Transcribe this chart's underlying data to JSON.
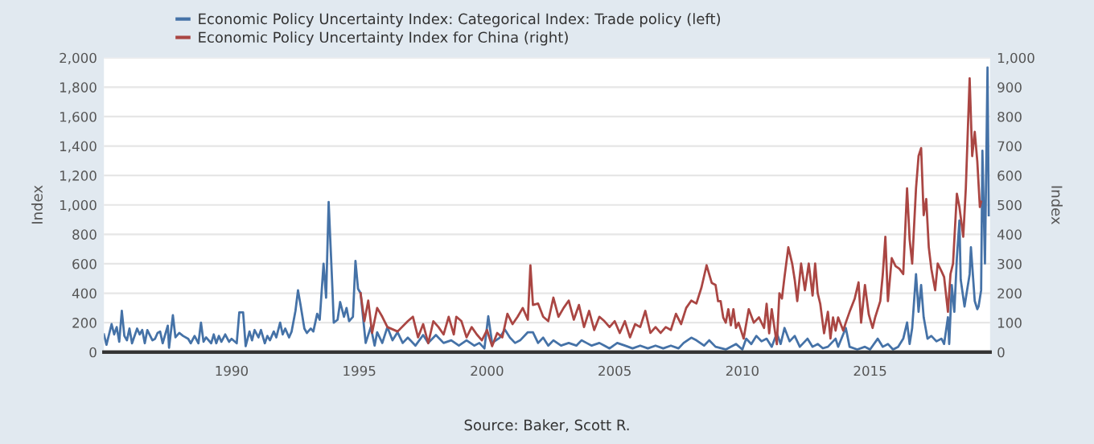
{
  "chart_data": {
    "type": "line",
    "ylabel": "Index",
    "y2label": "Index",
    "xlim": [
      1985,
      2019.7
    ],
    "xticks": [
      1990,
      1995,
      2000,
      2005,
      2010,
      2015
    ],
    "ylim": [
      0,
      2000
    ],
    "yticks": [
      0,
      200,
      400,
      600,
      800,
      {
        "value": 1000,
        "label": "1,000"
      },
      {
        "value": 1200,
        "label": "1,200"
      },
      {
        "value": 1400,
        "label": "1,400"
      },
      {
        "value": 1600,
        "label": "1,600"
      },
      {
        "value": 1800,
        "label": "1,800"
      },
      {
        "value": 2000,
        "label": "2,000"
      }
    ],
    "y2lim": [
      0,
      1000
    ],
    "y2ticks": [
      0,
      100,
      200,
      300,
      400,
      500,
      600,
      700,
      800,
      900,
      {
        "value": 1000,
        "label": "1,000"
      }
    ],
    "grid": "y",
    "legend": "top left",
    "marker": "none",
    "line_style": "solid",
    "annotations": [
      "Source: Baker, Scott R."
    ],
    "series": [
      {
        "name": "Economic Policy Uncertainty Index: Categorical Index: Trade policy (left)",
        "color": "#4572a7",
        "x": [
          1985.0,
          1985.1,
          1985.3,
          1985.4,
          1985.5,
          1985.6,
          1985.7,
          1985.8,
          1985.9,
          1986.0,
          1986.1,
          1986.3,
          1986.4,
          1986.5,
          1986.6,
          1986.7,
          1986.9,
          1987.0,
          1987.1,
          1987.2,
          1987.3,
          1987.5,
          1987.55,
          1987.7,
          1987.8,
          1987.95,
          1988.1,
          1988.3,
          1988.4,
          1988.55,
          1988.7,
          1988.8,
          1988.9,
          1989.0,
          1989.2,
          1989.3,
          1989.4,
          1989.5,
          1989.6,
          1989.75,
          1989.9,
          1990.0,
          1990.2,
          1990.3,
          1990.45,
          1990.55,
          1990.7,
          1990.8,
          1990.9,
          1991.05,
          1991.15,
          1991.3,
          1991.4,
          1991.5,
          1991.65,
          1991.75,
          1991.9,
          1992.0,
          1992.1,
          1992.25,
          1992.35,
          1992.5,
          1992.6,
          1992.7,
          1992.85,
          1992.95,
          1993.1,
          1993.2,
          1993.35,
          1993.45,
          1993.6,
          1993.7,
          1993.8,
          1993.95,
          1994.0,
          1994.15,
          1994.25,
          1994.4,
          1994.5,
          1994.6,
          1994.75,
          1994.85,
          1994.95,
          1995.05,
          1995.25,
          1995.45,
          1995.6,
          1995.7,
          1995.9,
          1996.1,
          1996.3,
          1996.5,
          1996.7,
          1996.9,
          1997.2,
          1997.5,
          1997.7,
          1998.0,
          1998.3,
          1998.6,
          1998.9,
          1999.2,
          1999.5,
          1999.7,
          1999.9,
          2000.05,
          2000.2,
          2000.5,
          2000.7,
          2000.9,
          2001.1,
          2001.3,
          2001.6,
          2001.8,
          2002.0,
          2002.2,
          2002.4,
          2002.6,
          2002.9,
          2003.2,
          2003.5,
          2003.7,
          2003.9,
          2004.1,
          2004.4,
          2004.6,
          2004.8,
          2005.1,
          2005.4,
          2005.7,
          2006.0,
          2006.3,
          2006.6,
          2006.9,
          2007.2,
          2007.5,
          2007.7,
          2008.0,
          2008.2,
          2008.5,
          2008.7,
          2008.95,
          2009.35,
          2009.75,
          2010.0,
          2010.15,
          2010.35,
          2010.55,
          2010.75,
          2010.95,
          2011.15,
          2011.35,
          2011.5,
          2011.65,
          2011.85,
          2012.05,
          2012.25,
          2012.55,
          2012.75,
          2012.95,
          2013.15,
          2013.35,
          2013.65,
          2013.75,
          2014.05,
          2014.2,
          2014.5,
          2014.8,
          2015.0,
          2015.3,
          2015.5,
          2015.7,
          2015.9,
          2016.1,
          2016.3,
          2016.45,
          2016.55,
          2016.65,
          2016.8,
          2016.9,
          2017.0,
          2017.1,
          2017.25,
          2017.4,
          2017.6,
          2017.8,
          2017.9,
          2018.05,
          2018.1,
          2018.2,
          2018.3,
          2018.4,
          2018.5,
          2018.55,
          2018.7,
          2018.8,
          2018.9,
          2018.95,
          2019.1,
          2019.2,
          2019.25,
          2019.35,
          2019.4,
          2019.5,
          2019.6,
          2019.65
        ],
        "values": [
          120,
          50,
          190,
          120,
          170,
          70,
          280,
          110,
          80,
          160,
          60,
          160,
          120,
          150,
          60,
          150,
          80,
          90,
          130,
          140,
          60,
          180,
          30,
          250,
          100,
          130,
          110,
          90,
          60,
          110,
          60,
          200,
          70,
          100,
          60,
          120,
          60,
          110,
          70,
          120,
          70,
          90,
          60,
          270,
          270,
          40,
          140,
          80,
          150,
          100,
          150,
          60,
          110,
          80,
          140,
          100,
          200,
          120,
          160,
          100,
          140,
          280,
          420,
          320,
          160,
          130,
          160,
          140,
          260,
          220,
          600,
          370,
          1020,
          420,
          200,
          220,
          340,
          240,
          300,
          210,
          240,
          620,
          430,
          400,
          62,
          170,
          44,
          135,
          62,
          170,
          80,
          135,
          62,
          98,
          44,
          116,
          62,
          116,
          62,
          80,
          44,
          80,
          44,
          62,
          25,
          244,
          62,
          98,
          153,
          98,
          62,
          80,
          135,
          135,
          62,
          98,
          44,
          80,
          44,
          62,
          44,
          80,
          62,
          44,
          62,
          44,
          25,
          62,
          44,
          25,
          44,
          25,
          44,
          25,
          44,
          25,
          62,
          98,
          80,
          44,
          80,
          36,
          18,
          55,
          18,
          91,
          55,
          110,
          73,
          91,
          36,
          128,
          55,
          164,
          73,
          110,
          36,
          91,
          36,
          55,
          26,
          36,
          91,
          36,
          164,
          36,
          18,
          36,
          18,
          91,
          36,
          55,
          18,
          36,
          91,
          201,
          55,
          164,
          529,
          274,
          456,
          237,
          91,
          110,
          73,
          91,
          55,
          237,
          55,
          456,
          274,
          639,
          894,
          493,
          310,
          420,
          529,
          712,
          347,
          292,
          310,
          420,
          1368,
          602,
          1934,
          930
        ]
      },
      {
        "name": "Economic Policy Uncertainty Index for China (right)",
        "color": "#aa4643",
        "axis": "y2",
        "x": [
          1995.05,
          1995.2,
          1995.35,
          1995.5,
          1995.7,
          1995.9,
          1996.1,
          1996.5,
          1996.9,
          1997.1,
          1997.3,
          1997.5,
          1997.7,
          1997.9,
          1998.1,
          1998.3,
          1998.5,
          1998.7,
          1998.8,
          1999.0,
          1999.2,
          1999.4,
          1999.6,
          1999.8,
          2000.0,
          2000.2,
          2000.4,
          2000.6,
          2000.8,
          2001.0,
          2001.2,
          2001.4,
          2001.6,
          2001.7,
          2001.8,
          2002.0,
          2002.2,
          2002.4,
          2002.6,
          2002.8,
          2003.0,
          2003.2,
          2003.4,
          2003.6,
          2003.8,
          2004.0,
          2004.2,
          2004.4,
          2004.6,
          2004.8,
          2005.0,
          2005.2,
          2005.4,
          2005.6,
          2005.8,
          2006.0,
          2006.2,
          2006.4,
          2006.6,
          2006.8,
          2007.0,
          2007.2,
          2007.4,
          2007.6,
          2007.8,
          2008.0,
          2008.2,
          2008.4,
          2008.6,
          2008.8,
          2008.95,
          2009.05,
          2009.15,
          2009.25,
          2009.35,
          2009.45,
          2009.55,
          2009.65,
          2009.75,
          2009.85,
          2010.05,
          2010.25,
          2010.45,
          2010.65,
          2010.85,
          2010.95,
          2011.05,
          2011.15,
          2011.35,
          2011.45,
          2011.55,
          2011.65,
          2011.8,
          2011.95,
          2012.05,
          2012.15,
          2012.3,
          2012.45,
          2012.6,
          2012.75,
          2012.85,
          2012.95,
          2013.05,
          2013.2,
          2013.35,
          2013.45,
          2013.55,
          2013.65,
          2013.75,
          2013.95,
          2014.05,
          2014.2,
          2014.4,
          2014.55,
          2014.65,
          2014.8,
          2014.95,
          2015.1,
          2015.2,
          2015.4,
          2015.5,
          2015.6,
          2015.7,
          2015.85,
          2016.0,
          2016.15,
          2016.3,
          2016.45,
          2016.55,
          2016.65,
          2016.8,
          2016.9,
          2017.0,
          2017.1,
          2017.2,
          2017.3,
          2017.4,
          2017.55,
          2017.65,
          2017.8,
          2017.9,
          2018.05,
          2018.15,
          2018.25,
          2018.4,
          2018.5,
          2018.65,
          2018.75,
          2018.9,
          2019.0,
          2019.1,
          2019.2,
          2019.3,
          2019.35
        ],
        "values": [
          200,
          105,
          175,
          65,
          150,
          120,
          85,
          70,
          105,
          120,
          50,
          95,
          30,
          105,
          85,
          60,
          120,
          60,
          120,
          105,
          50,
          85,
          60,
          40,
          75,
          20,
          65,
          50,
          130,
          95,
          120,
          150,
          110,
          295,
          160,
          165,
          120,
          105,
          185,
          120,
          150,
          175,
          110,
          160,
          85,
          140,
          75,
          120,
          105,
          85,
          105,
          65,
          105,
          50,
          95,
          85,
          140,
          65,
          85,
          65,
          85,
          75,
          130,
          95,
          150,
          175,
          165,
          220,
          295,
          235,
          228,
          173,
          173,
          118,
          100,
          146,
          91,
          146,
          82,
          100,
          46,
          146,
          100,
          118,
          82,
          164,
          64,
          146,
          27,
          200,
          182,
          255,
          356,
          301,
          246,
          173,
          301,
          210,
          301,
          192,
          301,
          200,
          164,
          64,
          137,
          46,
          118,
          73,
          118,
          73,
          100,
          137,
          182,
          237,
          100,
          228,
          128,
          82,
          118,
          173,
          265,
          392,
          173,
          319,
          292,
          283,
          265,
          556,
          383,
          301,
          556,
          666,
          693,
          465,
          520,
          356,
          283,
          210,
          301,
          274,
          255,
          137,
          265,
          301,
          538,
          493,
          392,
          556,
          930,
          666,
          748,
          648,
          493,
          511
        ]
      }
    ]
  }
}
